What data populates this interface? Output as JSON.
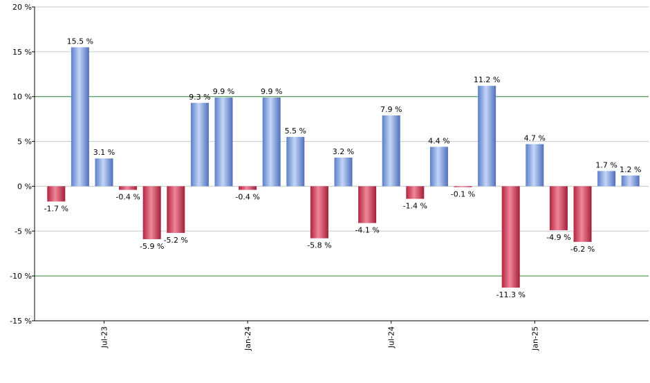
{
  "chart_data": {
    "type": "bar",
    "title": "",
    "xlabel": "",
    "ylabel": "",
    "ylim": [
      -15,
      20
    ],
    "y_ticks": [
      20,
      15,
      10,
      5,
      0,
      -5,
      -10,
      -15
    ],
    "y_tick_labels": [
      "20 %",
      "15 %",
      "10 %",
      "5 %",
      "0 %",
      "-5 %",
      "-10 %",
      "-15 %"
    ],
    "reference_lines": [
      10,
      -10
    ],
    "x_tick_labels": [
      {
        "label": "Jul-23",
        "index": 2
      },
      {
        "label": "Jan-24",
        "index": 8
      },
      {
        "label": "Jul-24",
        "index": 14
      },
      {
        "label": "Jan-25",
        "index": 20
      }
    ],
    "values": [
      -1.7,
      15.5,
      3.1,
      -0.4,
      -5.9,
      -5.2,
      9.3,
      9.9,
      -0.4,
      9.9,
      5.5,
      -5.8,
      3.2,
      -4.1,
      7.9,
      -1.4,
      4.4,
      -0.1,
      11.2,
      -11.3,
      4.7,
      -4.9,
      -6.2,
      1.7,
      1.2
    ],
    "data_labels": [
      "-1.7 %",
      "15.5 %",
      "3.1 %",
      "-0.4 %",
      "-5.9 %",
      "-5.2 %",
      "9.3 %",
      "9.9 %",
      "-0.4 %",
      "9.9 %",
      "5.5 %",
      "-5.8 %",
      "3.2 %",
      "-4.1 %",
      "7.9 %",
      "-1.4 %",
      "4.4 %",
      "-0.1 %",
      "11.2 %",
      "-11.3 %",
      "4.7 %",
      "-4.9 %",
      "-6.2 %",
      "1.7 %",
      "1.2 %"
    ],
    "grid": true,
    "colors": {
      "positive": "#6f93dd",
      "negative": "#cc3355",
      "grid": "#c8c8c8",
      "reference_line": "#2e7d32",
      "axis": "#000000"
    }
  }
}
